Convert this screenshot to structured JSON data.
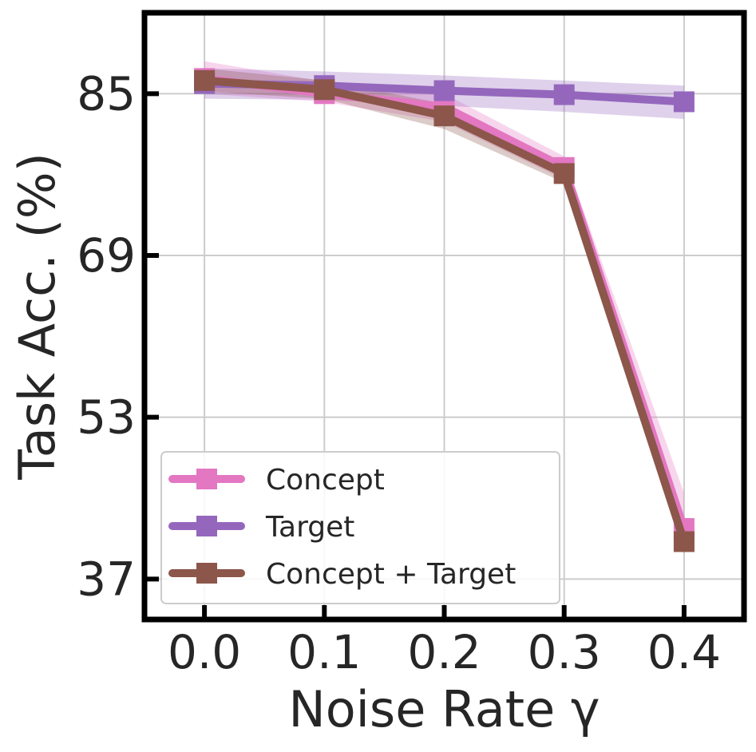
{
  "chart_data": {
    "type": "line",
    "title": "",
    "xlabel": "Noise Rate γ",
    "ylabel": "Task Acc. (%)",
    "x": [
      0.0,
      0.1,
      0.2,
      0.3,
      0.4
    ],
    "x_tick_labels": [
      "0.0",
      "0.1",
      "0.2",
      "0.3",
      "0.4"
    ],
    "y_ticks": [
      37,
      53,
      69,
      85
    ],
    "y_tick_labels": [
      "37",
      "53",
      "69",
      "85"
    ],
    "xlim": [
      -0.05,
      0.45
    ],
    "ylim": [
      33,
      93
    ],
    "grid": true,
    "legend_position": "lower-left",
    "series": [
      {
        "name": "Concept",
        "color": "#e377c2",
        "values": [
          86.5,
          85.0,
          83.7,
          77.7,
          42.0
        ],
        "band_lower": [
          85.0,
          84.2,
          82.2,
          76.5,
          39.5
        ],
        "band_upper": [
          88.2,
          86.2,
          85.0,
          78.8,
          45.5
        ]
      },
      {
        "name": "Target",
        "color": "#9467bd",
        "values": [
          86.0,
          85.8,
          85.3,
          84.9,
          84.2
        ],
        "band_lower": [
          84.5,
          84.4,
          83.8,
          83.2,
          82.5
        ],
        "band_upper": [
          87.5,
          87.2,
          86.8,
          86.3,
          85.8
        ]
      },
      {
        "name": "Concept + Target",
        "color": "#8c564b",
        "values": [
          86.3,
          85.4,
          82.8,
          77.1,
          40.7
        ],
        "band_lower": [
          85.2,
          84.5,
          81.5,
          76.2,
          39.5
        ],
        "band_upper": [
          87.5,
          86.3,
          84.0,
          78.2,
          41.8
        ]
      }
    ]
  }
}
